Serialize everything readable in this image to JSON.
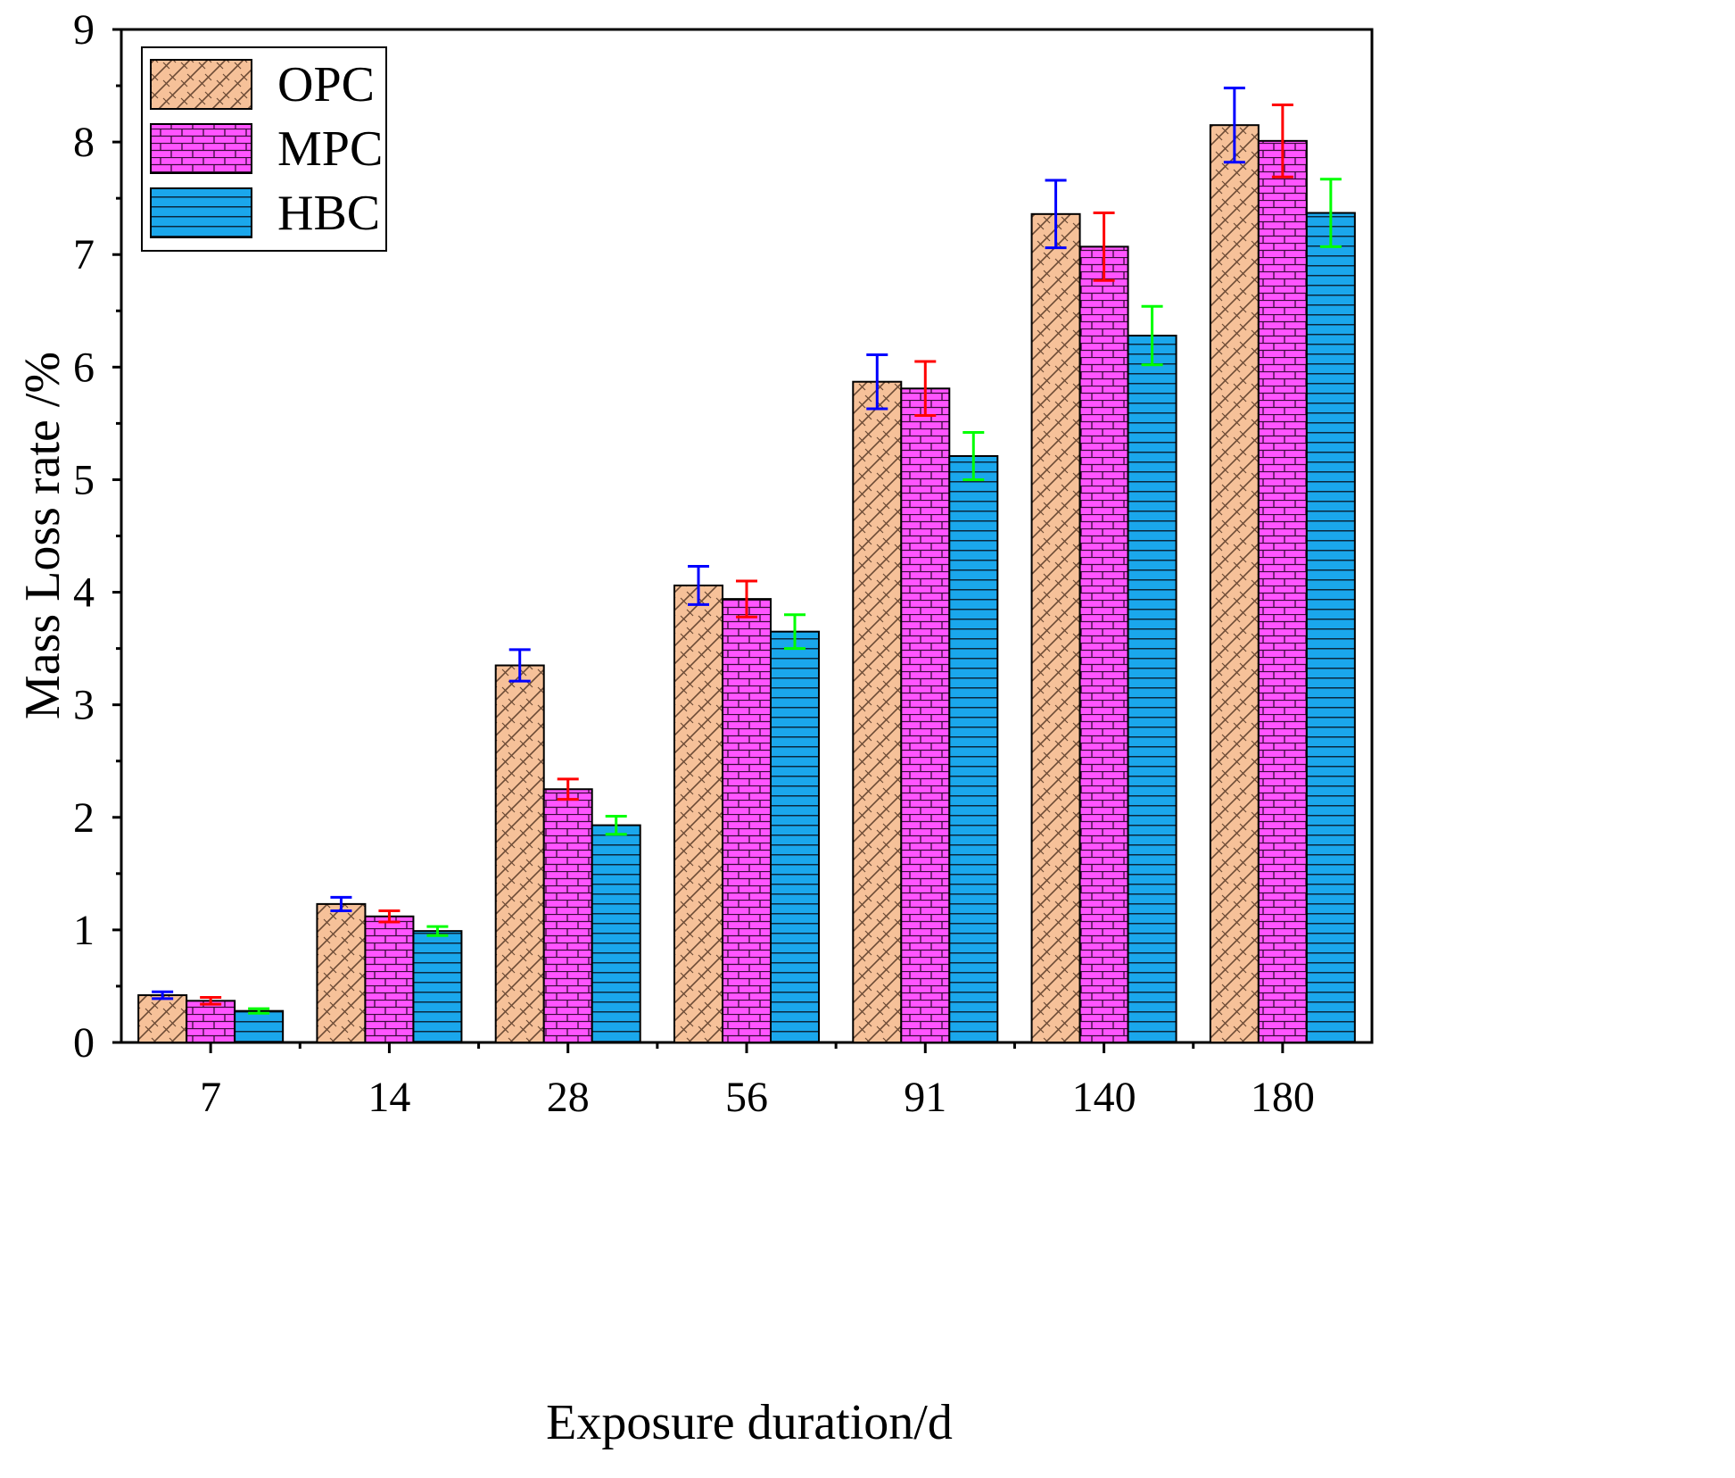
{
  "chart_data": {
    "type": "bar",
    "title": "",
    "xlabel": "Exposure duration/d",
    "ylabel": "Mass Loss rate /%",
    "ylim": [
      0,
      9
    ],
    "yticks": [
      "0",
      "1",
      "2",
      "3",
      "4",
      "5",
      "6",
      "7",
      "8",
      "9"
    ],
    "categories": [
      "7",
      "14",
      "28",
      "56",
      "91",
      "140",
      "180"
    ],
    "series": [
      {
        "name": "OPC",
        "values": [
          0.42,
          1.23,
          3.35,
          4.06,
          5.87,
          7.36,
          8.15
        ],
        "errors": [
          0.03,
          0.06,
          0.14,
          0.17,
          0.24,
          0.3,
          0.33
        ],
        "fill_color": "#f6c199",
        "error_color": "#0000ff",
        "pattern": "diagonal-hatch"
      },
      {
        "name": "MPC",
        "values": [
          0.37,
          1.12,
          2.25,
          3.94,
          5.81,
          7.07,
          8.01
        ],
        "errors": [
          0.03,
          0.05,
          0.09,
          0.16,
          0.24,
          0.3,
          0.32
        ],
        "fill_color": "#ff55ff",
        "error_color": "#ff0000",
        "pattern": "brick"
      },
      {
        "name": "HBC",
        "values": [
          0.28,
          0.99,
          1.93,
          3.65,
          5.21,
          6.28,
          7.37
        ],
        "errors": [
          0.02,
          0.04,
          0.08,
          0.15,
          0.21,
          0.26,
          0.3
        ],
        "fill_color": "#1aa7ec",
        "error_color": "#00ff00",
        "pattern": "horizontal-lines"
      }
    ],
    "legend": "top-left",
    "grid": false
  }
}
